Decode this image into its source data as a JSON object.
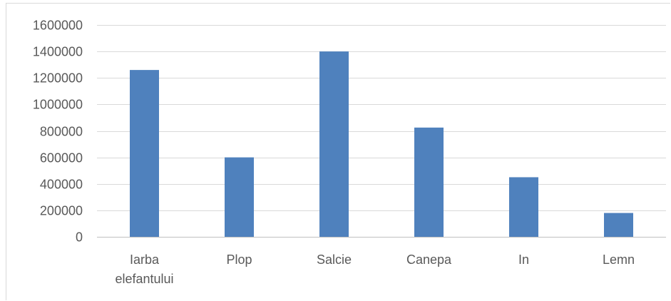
{
  "chart_data": {
    "type": "bar",
    "title": "",
    "xlabel": "",
    "ylabel": "",
    "categories": [
      "Iarba elefantului",
      "Plop",
      "Salcie",
      "Canepa",
      "In",
      "Lemn"
    ],
    "category_lines": [
      [
        "Iarba",
        "elefantului"
      ],
      [
        "Plop"
      ],
      [
        "Salcie"
      ],
      [
        "Canepa"
      ],
      [
        "In"
      ],
      [
        "Lemn"
      ]
    ],
    "values": [
      1260000,
      600000,
      1400000,
      825000,
      450000,
      180000
    ],
    "ylim": [
      0,
      1600000
    ],
    "yticks": [
      0,
      200000,
      400000,
      600000,
      800000,
      1000000,
      1200000,
      1400000,
      1600000
    ],
    "grid": true,
    "legend": "none",
    "bar_color": "#4f81bd",
    "grid_color": "#d9d9d9",
    "text_color": "#595959"
  }
}
